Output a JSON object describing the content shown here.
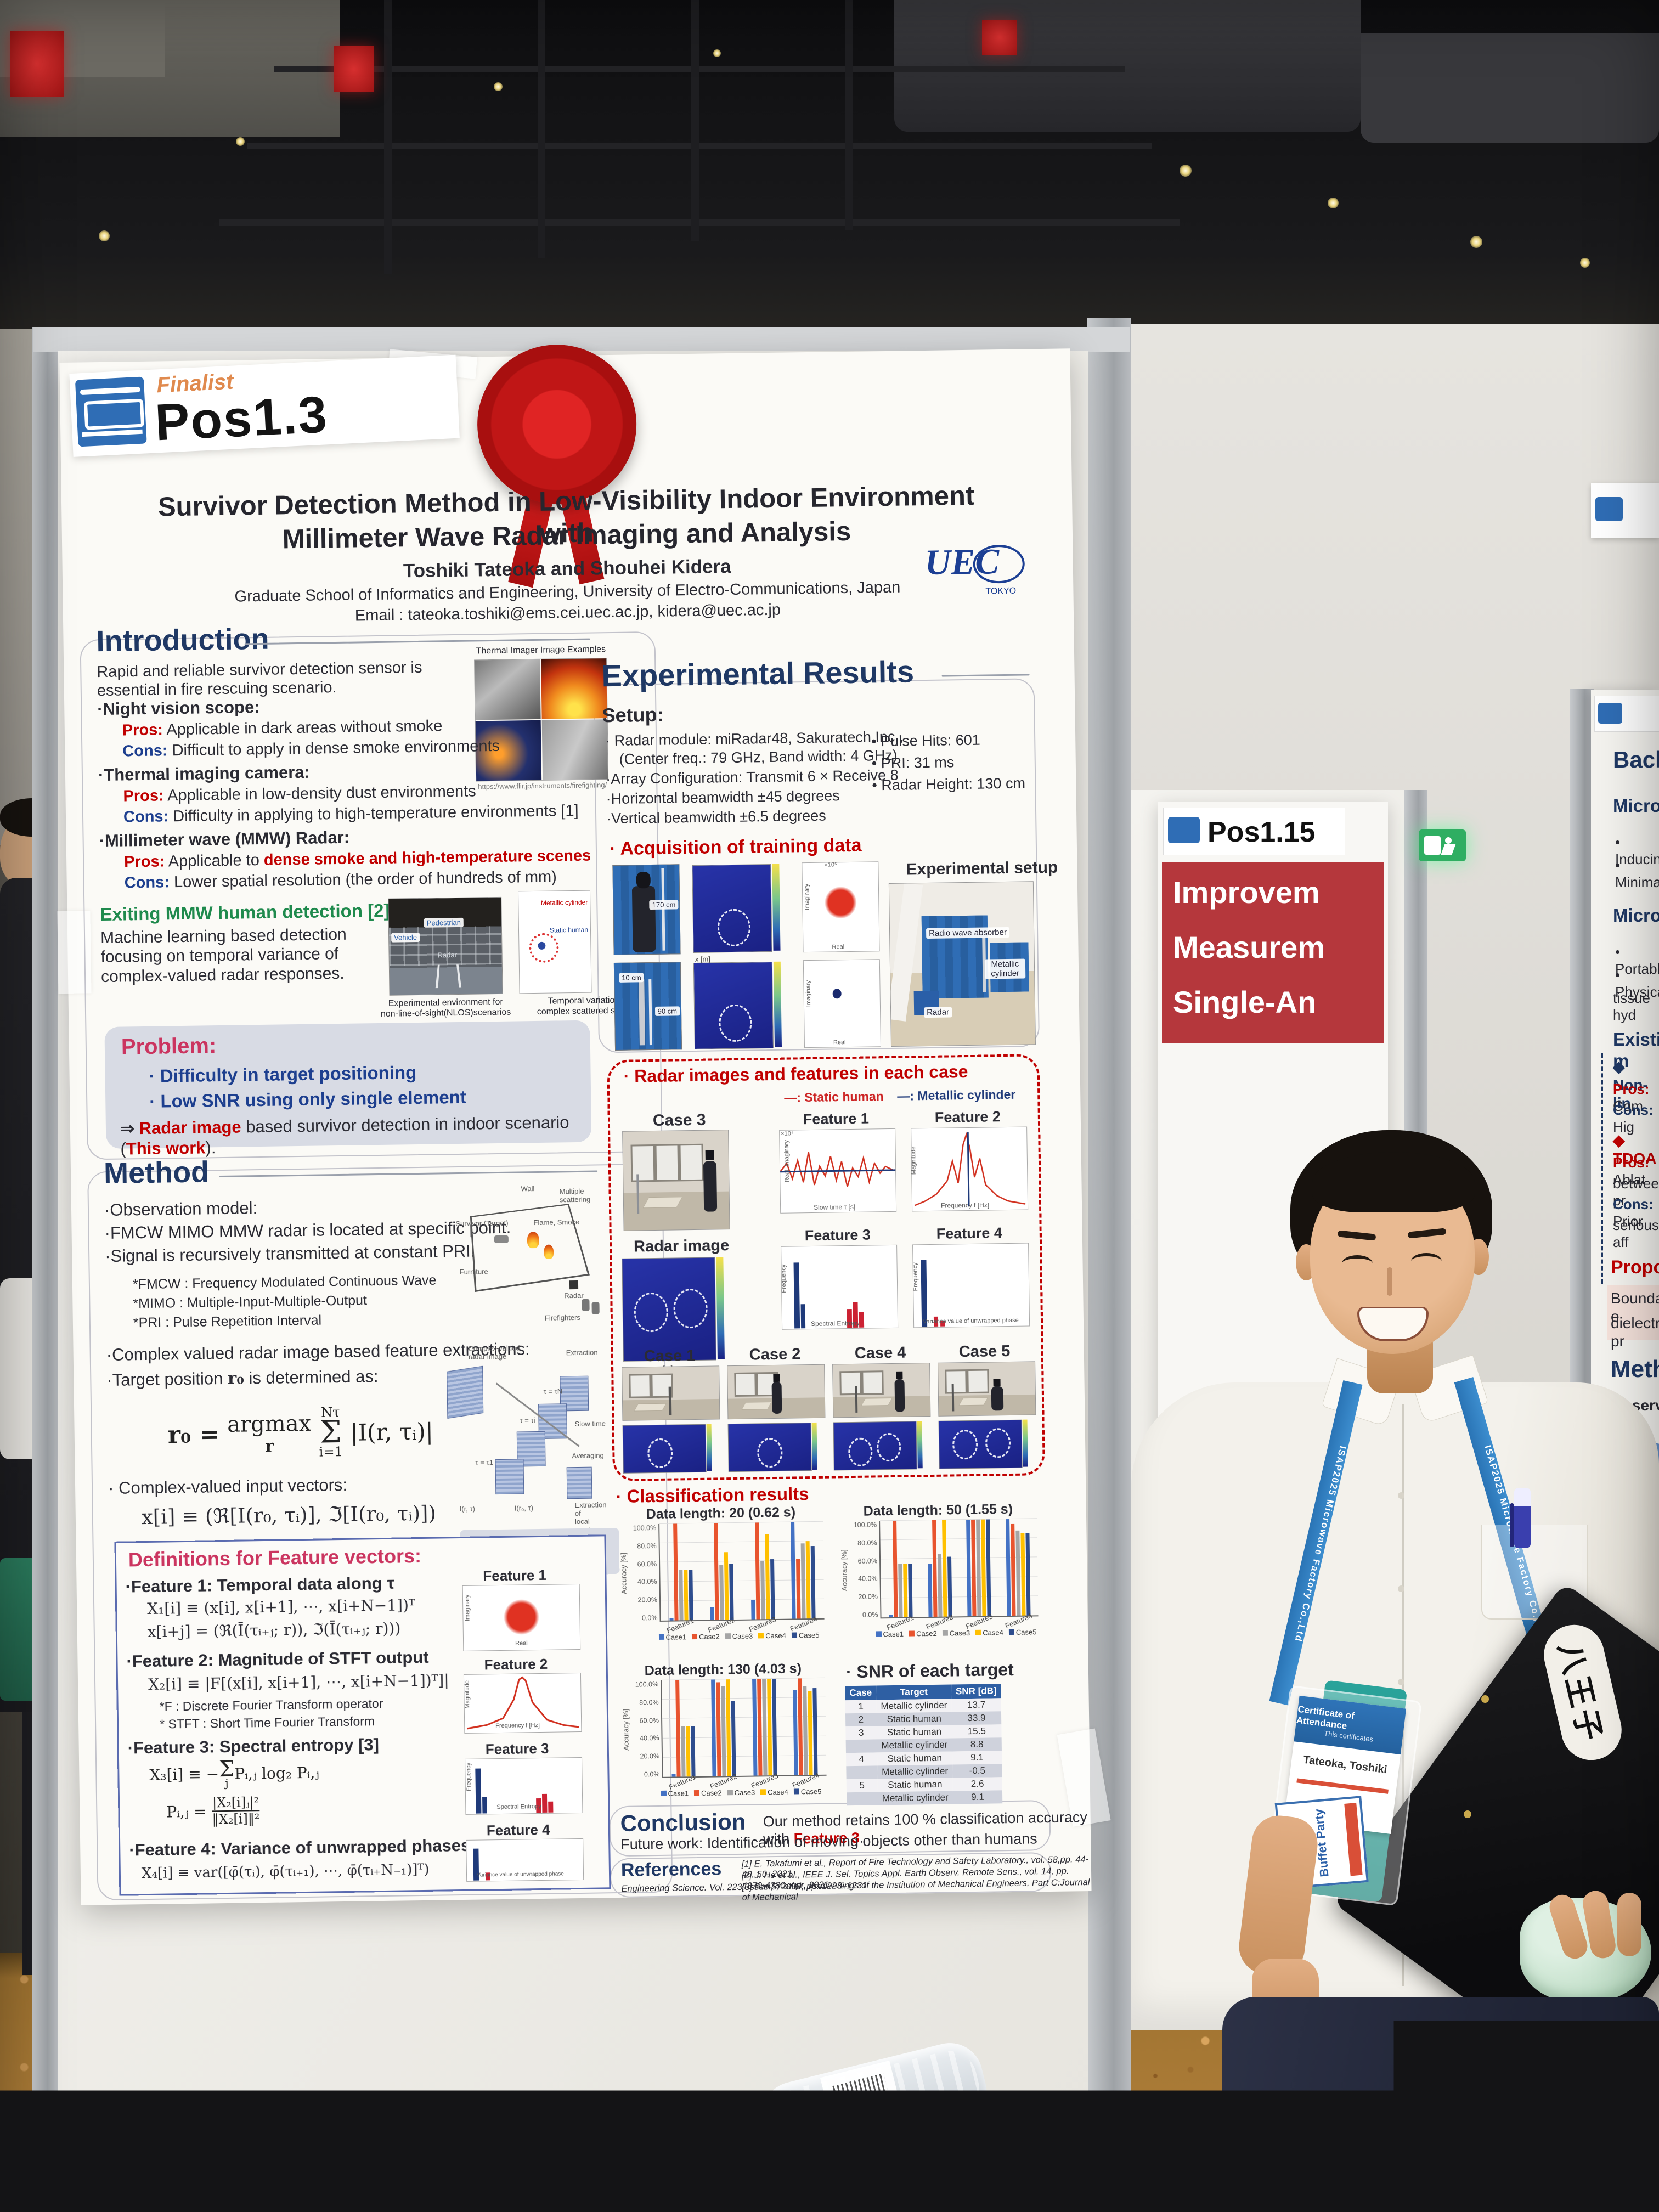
{
  "header": {
    "finalist": "Finalist",
    "pos": "Pos1.3"
  },
  "title": {
    "line1": "Survivor Detection Method in Low-Visibility Indoor Environment with",
    "line2": "Millimeter Wave Radar Imaging and Analysis",
    "authors": "Toshiki Tateoka and Shouhei Kidera",
    "affiliation": "Graduate School of Informatics and Engineering, University of Electro-Communications, Japan",
    "email": "Email : tateoka.toshiki@ems.cei.uec.ac.jp, kidera@uec.ac.jp",
    "logo": "UEC",
    "logo_sub": "TOKYO"
  },
  "intro": {
    "heading": "Introduction",
    "p1": "Rapid and reliable survivor detection sensor is",
    "p2": "essential in fire rescuing scenario.",
    "thermal_caption": "Thermal Imager Image Examples",
    "thermal_credit": "https://www.flir.jp/instruments/firefighting/",
    "pros_label": "Pros:",
    "cons_label": "Cons:",
    "b1": {
      "head": "Night vision scope:",
      "pros": "Applicable in dark areas without smoke",
      "cons": "Difficult to apply in dense smoke environments"
    },
    "b2": {
      "head": "Thermal imaging camera:",
      "pros": "Applicable in low-density dust environments",
      "cons": "Difficulty in applying to high-temperature environments [1]"
    },
    "b3": {
      "head": "Millimeter wave (MMW) Radar:",
      "pros_a": "Applicable to ",
      "pros_b": "dense smoke and high-temperature scenes",
      "cons": "Lower spatial resolution (the order of hundreds of mm)"
    },
    "exiting_head": "Exiting MMW human detection [2]:",
    "ex1": "Machine learning based detection",
    "ex2": "focusing on temporal variance of",
    "ex3": "complex-valued radar responses.",
    "nlos_caption1": "Experimental environment for",
    "nlos_caption2": "non-line-of-sight(NLOS)scenarios",
    "temporal_caption1": "Temporal variation of",
    "temporal_caption2": "complex scattered signals.",
    "nlos_labels": {
      "pedestrian": "Pedestrian",
      "vehicle": "Vehicle",
      "radar": "Radar"
    },
    "mini_legend": {
      "cyl": "Metallic cylinder",
      "human": "Static human"
    },
    "problem": {
      "head": "Problem:",
      "b1": "Difficulty in target positioning",
      "b2": "Low SNR using only single element",
      "arrow": "⇒ ",
      "a1": "Radar image",
      "a2": " based survivor detection in indoor scenario (",
      "a3": "This work",
      "a4": ")."
    }
  },
  "method": {
    "heading": "Method",
    "obs": "Observation model:",
    "m1": "FMCW MIMO MMW radar is located at specific point.",
    "m2": "Signal is recursively transmitted at constant PRI.",
    "d1": "*FMCW : Frequency Modulated Continuous Wave",
    "d2": "*MIMO : Multiple-Input-Multiple-Output",
    "d3": "*PRI : Pulse Repetition Interval",
    "room": {
      "wall": "Wall",
      "multi": "Multiple scattering",
      "survivor": "Survivor (Target)",
      "flame": "Flame, Smoke",
      "furniture": "Furniture",
      "radar": "Radar",
      "fire": "Firefighters"
    },
    "m3": "Complex valued radar image based feature extractions:",
    "m4a": "Target position ",
    "m4b": "r₀",
    "m4c": "  is determined as:",
    "eq_lhs": "r₀ =",
    "eq_op": "argmax",
    "eq_under": "r",
    "eq_sup": "Nτ",
    "eq_sigma": "Σ",
    "eq_sub": "i=1",
    "eq_rhs": "|I(r, τᵢ)|",
    "cascade": {
      "cv1": "Complex-valued",
      "cv2": "radar image",
      "extraction": "Extraction",
      "slow": "Slow time",
      "avg": "Averaging",
      "ext1": "Extraction of",
      "ext2": "local maxima",
      "i1": "I(r, τ)",
      "i2": "I(r₀, τ)",
      "t1": "τ = τN",
      "t2": "τ = τi",
      "t3": "τ = τ1"
    },
    "m5": "Complex-valued input vectors:",
    "eq2": "x[i] ≡ (ℜ[I(r₀, τᵢ)], ℑ[I(r₀, τᵢ)])",
    "legend_human": "—: Static human",
    "legend_cyl": "—: Metallic cylinder"
  },
  "defs": {
    "heading": "Definitions for Feature vectors:",
    "f1": "Feature 1: Temporal data along τ",
    "f1e1": "X₁[i] ≡ (x[i], x[i+1], ⋯, x[i+N−1])ᵀ",
    "f1e2": "x[i+j] = (ℜ(Ī(τᵢ₊ⱼ; r)), ℑ(Ī(τᵢ₊ⱼ; r)))",
    "f2": "Feature 2: Magnitude of STFT output",
    "f2e": "X₂[i] ≡ |F[(x[i], x[i+1], ⋯, x[i+N−1])ᵀ]|",
    "f2n1": "*F : Discrete Fourier Transform operator",
    "f2n2": "* STFT : Short Time Fourier Transform",
    "f3": "Feature 3: Spectral entropy [3]",
    "f3ea": "X₃[i] ≡ −",
    "f3sigma": "Σ",
    "f3sub": "j",
    "f3eb": " Pᵢ,ⱼ log₂ Pᵢ,ⱼ",
    "f3e2lhs": "Pᵢ,ⱼ =",
    "f3e2num": "|X₂[i]ⱼ|²",
    "f3e2den": "‖X₂[i]‖²",
    "f4": "Feature 4: Variance of unwrapped phases",
    "f4e": "X₄[i] ≡ var([φ̄(τᵢ), φ̄(τᵢ₊₁), ⋯, φ̄(τᵢ₊N₋₁)]ᵀ)",
    "plot1": "Feature 1",
    "plot2": "Feature 2",
    "plot3": "Feature 3",
    "plot4": "Feature 4",
    "p1y": "Imaginary",
    "p1x": "Real",
    "p2y": "Magnitude",
    "p2x": "Frequency f [Hz]",
    "p3y": "Frequency",
    "p3x": "Spectral Entropy",
    "p4x": "Variance value of unwrapped phase"
  },
  "results": {
    "heading": "Experimental Results",
    "setup": "Setup:",
    "s1a": "Radar module: miRadar48, Sakuratech Inc.,",
    "s1b": "(Center freq.: 79 GHz, Band width: 4 GHz)",
    "s2": "Array Configuration: Transmit 6 × Receive 8",
    "s3": "Horizontal beamwidth ±45 degrees",
    "s4": "Vertical beamwidth ±6.5 degrees",
    "r1": "Pulse Hits: 601",
    "r2": "PRI: 31 ms",
    "r3": "Radar Height: 130 cm",
    "acq": "Acquisition of training data",
    "h170": "170 cm",
    "h10": "10 cm",
    "h90": "90 cm",
    "imag": "Imaginary",
    "real": "Real",
    "e5": "×10⁵",
    "xm": "x [m]",
    "ym": "y [m]",
    "exp_setup": "Experimental setup",
    "absorber": "Radio wave absorber",
    "cylinder": "Metallic cylinder",
    "radar": "Radar"
  },
  "cases_box": {
    "heading": "Radar images and features in each case",
    "legend_human": "—: Static human",
    "legend_cyl": "—: Metallic cylinder",
    "case3": "Case 3",
    "radar_image": "Radar image",
    "f1": "Feature 1",
    "f2": "Feature 2",
    "f3": "Feature 3",
    "f4": "Feature 4",
    "f1y": "Real, Imaginary",
    "f1x": "Slow time τ [s]",
    "e4": "×10⁴",
    "f2y": "Magnitude",
    "f2x": "Frequency f [Hz]",
    "f3y": "Frequency",
    "f3x": "Spectral Entropy",
    "f4y": "Frequency",
    "f4x": "Variance value of unwrapped phase",
    "case1": "Case 1",
    "case2": "Case 2",
    "case4": "Case 4",
    "case5": "Case 5"
  },
  "classification": {
    "heading": "Classification results"
  },
  "snr": {
    "heading": "SNR of each target"
  },
  "conclusion": {
    "heading": "Conclusion",
    "l1a": "Our method retains 100 % classification accuracy with ",
    "l1b": "Feature 3",
    "l1c": ".",
    "l2": "Future work: Identification of moving objects other than humans"
  },
  "references": {
    "heading": "References",
    "r1": "[1] E. Takafumi et al., Report of Fire Technology and Safety Laboratory., vol. 58,pp. 44-46, 50, 2021.",
    "r2": "[2] J. He et al., IEEE J. Sel. Topics Appl. Earth Observ. Remote Sens., vol. 14, pp. 4370-4380, Apr. 2021.",
    "r3": "[3] Pan, Y et al., Proceedings of the Institution of Mechanical Engineers, Part C:Journal of Mechanical",
    "r4": "Engineering Science. Vol. 223, Issue 5, 2009, pp. 1223–1231"
  },
  "chart_data": [
    {
      "type": "bar",
      "title": "Data length: 20 (0.62 s)",
      "ylabel": "Accuracy [%]",
      "ylim": [
        0,
        100
      ],
      "yticks": [
        "100.0%",
        "80.0%",
        "60.0%",
        "40.0%",
        "20.0%",
        "0.0%"
      ],
      "categories": [
        "Feature1",
        "Feature2",
        "Feature3",
        "Feature4"
      ],
      "series": [
        {
          "name": "Case1",
          "color": "#4472c4",
          "values": [
            2,
            13,
            20,
            100
          ]
        },
        {
          "name": "Case2",
          "color": "#e8542e",
          "values": [
            100,
            100,
            100,
            62
          ]
        },
        {
          "name": "Case3",
          "color": "#a5a5a5",
          "values": [
            52,
            57,
            60,
            78
          ]
        },
        {
          "name": "Case4",
          "color": "#ffc000",
          "values": [
            52,
            70,
            88,
            80
          ]
        },
        {
          "name": "Case5",
          "color": "#2e4d8e",
          "values": [
            52,
            58,
            62,
            75
          ]
        }
      ]
    },
    {
      "type": "bar",
      "title": "Data length: 50 (1.55 s)",
      "ylabel": "Accuracy [%]",
      "ylim": [
        0,
        100
      ],
      "yticks": [
        "100.0%",
        "80.0%",
        "60.0%",
        "40.0%",
        "20.0%",
        "0.0%"
      ],
      "categories": [
        "Feature1",
        "Feature2",
        "Feature3",
        "Feature4"
      ],
      "series": [
        {
          "name": "Case1",
          "color": "#4472c4",
          "values": [
            3,
            55,
            100,
            100
          ]
        },
        {
          "name": "Case2",
          "color": "#e8542e",
          "values": [
            100,
            100,
            100,
            95
          ]
        },
        {
          "name": "Case3",
          "color": "#a5a5a5",
          "values": [
            55,
            65,
            100,
            88
          ]
        },
        {
          "name": "Case4",
          "color": "#ffc000",
          "values": [
            55,
            100,
            100,
            85
          ]
        },
        {
          "name": "Case5",
          "color": "#2e4d8e",
          "values": [
            55,
            62,
            100,
            85
          ]
        }
      ]
    },
    {
      "type": "bar",
      "title": "Data length: 130 (4.03 s)",
      "ylabel": "Accuracy [%]",
      "ylim": [
        0,
        100
      ],
      "yticks": [
        "100.0%",
        "80.0%",
        "60.0%",
        "40.0%",
        "20.0%",
        "0.0%"
      ],
      "categories": [
        "Feature1",
        "Feature2",
        "Feature3",
        "Feature4"
      ],
      "series": [
        {
          "name": "Case1",
          "color": "#4472c4",
          "values": [
            3,
            100,
            100,
            88
          ]
        },
        {
          "name": "Case2",
          "color": "#e8542e",
          "values": [
            100,
            97,
            100,
            100
          ]
        },
        {
          "name": "Case3",
          "color": "#a5a5a5",
          "values": [
            52,
            93,
            100,
            92
          ]
        },
        {
          "name": "Case4",
          "color": "#ffc000",
          "values": [
            52,
            100,
            100,
            87
          ]
        },
        {
          "name": "Case5",
          "color": "#2e4d8e",
          "values": [
            52,
            78,
            100,
            90
          ]
        }
      ]
    },
    {
      "type": "table",
      "title": "SNR of each target",
      "headers": [
        "Case",
        "Target",
        "SNR [dB]"
      ],
      "rows": [
        [
          "1",
          "Metallic cylinder",
          "13.7"
        ],
        [
          "2",
          "Static human",
          "33.9"
        ],
        [
          "3",
          "Static human",
          "15.5"
        ],
        [
          "",
          "Metallic cylinder",
          "8.8"
        ],
        [
          "4",
          "Static human",
          "9.1"
        ],
        [
          "",
          "Metallic cylinder",
          "-0.5"
        ],
        [
          "5",
          "Static human",
          "2.6"
        ],
        [
          "",
          "Metallic cylinder",
          "9.1"
        ]
      ]
    }
  ],
  "pos115": {
    "label": "Pos1.15",
    "l1": "Improvem",
    "l2": "Measurem",
    "l3": "Single-An"
  },
  "far_poster": {
    "h1": "Backgr",
    "h2": "Microwa",
    "b1": "• Inducing",
    "b2": "• Minimally",
    "h3": "Microwav",
    "b3": "• Portable",
    "b4": "• Physical",
    "b5": "tissue hyd",
    "h4": "Existing m",
    "d1": "◆ Non-lin",
    "p1a": "Pros:",
    "p1b": " Com",
    "c1a": "Cons:",
    "c1b": " Hig",
    "d2": "◆ TDOA",
    "p2a": "Pros:",
    "p2b": " Ablat",
    "l1": "between pr",
    "c2a": "Cons:",
    "c2b": " Prior",
    "l2": "seriously aff",
    "h5": "Proposed s",
    "l3": "Boundary e",
    "l4": "dielectric pr",
    "h6": "Method",
    "l5": "Observatio"
  },
  "person": {
    "badge_title": "Certificate of Attendance",
    "badge_sub": "This certificates",
    "badge_name": "Tateoka, Toshiki",
    "ticket": "Buffet Party",
    "lanyard": "ISAP2025",
    "lanyard2": "Microwave Factory Co.,Ltd",
    "sticker": "八王子"
  }
}
